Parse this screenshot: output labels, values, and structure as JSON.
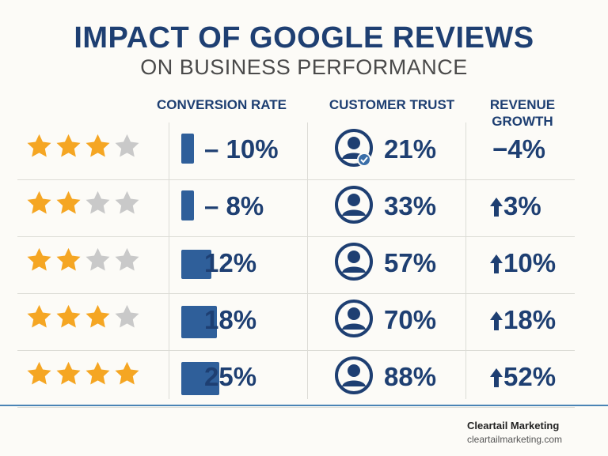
{
  "title": "IMPACT OF GOOGLE REVIEWS",
  "subtitle": "ON BUSINESS PERFORMANCE",
  "columns": {
    "conversion": "CONVERSION RATE",
    "trust": "CUSTOMER TRUST",
    "revenue": "REVENUE\nGROWTH"
  },
  "colors": {
    "navy": "#1e3f72",
    "bar": "#2f5f9a",
    "star_on": "#f5a623",
    "star_off": "#c9c9c9"
  },
  "rows": [
    {
      "stars_filled": 3,
      "stars_total": 4,
      "conversion": "– 10%",
      "trust": "21%",
      "revenue": "−4%",
      "revenue_arrow": false,
      "trust_badge": true,
      "bar_level": 0.35
    },
    {
      "stars_filled": 2,
      "stars_total": 4,
      "conversion": "– 8%",
      "trust": "33%",
      "revenue": "3%",
      "revenue_arrow": true,
      "trust_badge": false,
      "bar_level": 0.32
    },
    {
      "stars_filled": 2,
      "stars_total": 4,
      "conversion": "12%",
      "trust": "57%",
      "revenue": "10%",
      "revenue_arrow": true,
      "trust_badge": false,
      "bar_level": 0.66
    },
    {
      "stars_filled": 3,
      "stars_total": 4,
      "conversion": "18%",
      "trust": "70%",
      "revenue": "18%",
      "revenue_arrow": true,
      "trust_badge": false,
      "bar_level": 0.9
    },
    {
      "stars_filled": 4,
      "stars_total": 4,
      "conversion": "25%",
      "trust": "88%",
      "revenue": "52%",
      "revenue_arrow": true,
      "trust_badge": false,
      "bar_level": 1.0
    }
  ],
  "footer": {
    "brand": "Cleartail Marketing",
    "url": "cleartailmarketing.com"
  }
}
